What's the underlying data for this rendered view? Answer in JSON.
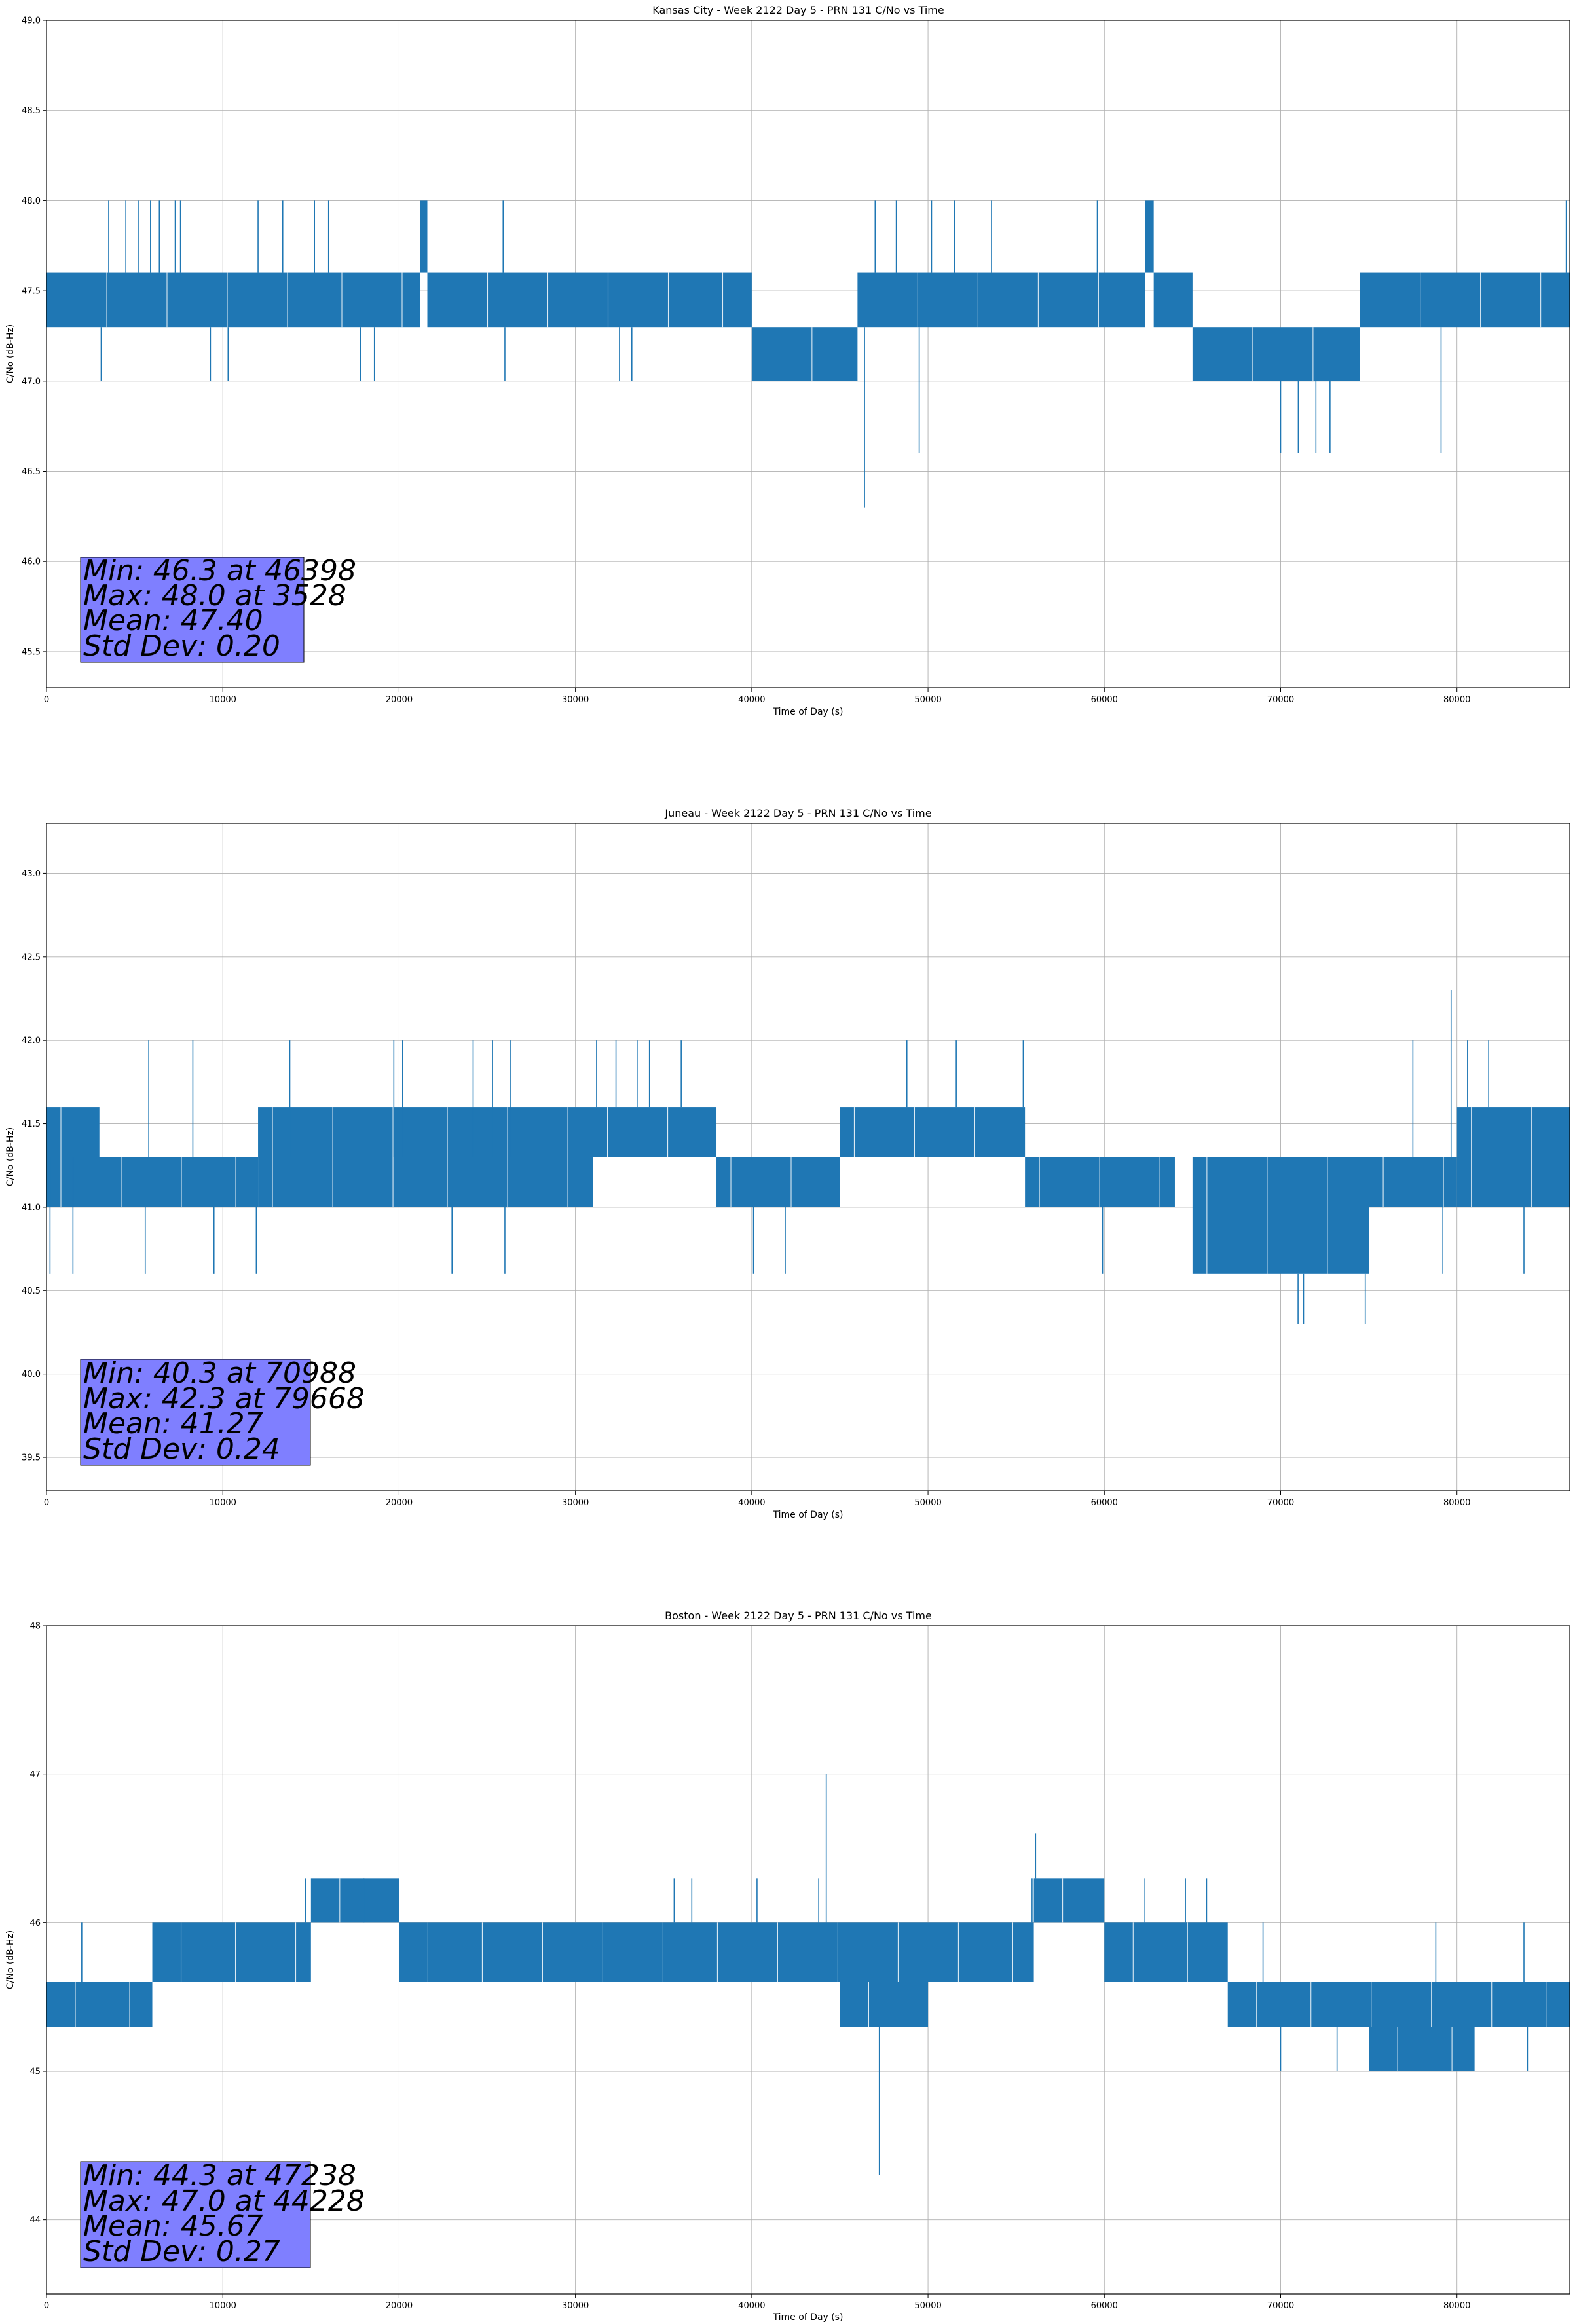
{
  "chart_data": [
    {
      "type": "line",
      "title": "Kansas City - Week 2122 Day 5 - PRN 131 C/No vs Time",
      "xlabel": "Time of Day (s)",
      "ylabel": "C/No (dB-Hz)",
      "xlim": [
        0,
        86400
      ],
      "ylim": [
        45.3,
        49.0
      ],
      "xticks": [
        0,
        10000,
        20000,
        30000,
        40000,
        50000,
        60000,
        70000,
        80000
      ],
      "yticks": [
        45.5,
        46.0,
        46.5,
        47.0,
        47.5,
        48.0,
        48.5,
        49.0
      ],
      "ytick_labels": [
        "45.5",
        "46.0",
        "46.5",
        "47.0",
        "47.5",
        "48.0",
        "48.5",
        "49.0"
      ],
      "grid": true,
      "series_color": "#1f77b4",
      "series_name": "C/No",
      "segments": [
        {
          "x0": 0,
          "x1": 21200,
          "lo": 47.3,
          "hi": 47.6
        },
        {
          "x0": 21200,
          "x1": 21600,
          "lo": 47.6,
          "hi": 48.0
        },
        {
          "x0": 21600,
          "x1": 40000,
          "lo": 47.3,
          "hi": 47.6
        },
        {
          "x0": 40000,
          "x1": 46000,
          "lo": 47.0,
          "hi": 47.3
        },
        {
          "x0": 46000,
          "x1": 62300,
          "lo": 47.3,
          "hi": 47.6
        },
        {
          "x0": 62300,
          "x1": 62800,
          "lo": 47.6,
          "hi": 48.0
        },
        {
          "x0": 62800,
          "x1": 65000,
          "lo": 47.3,
          "hi": 47.6
        },
        {
          "x0": 65000,
          "x1": 74500,
          "lo": 47.0,
          "hi": 47.3
        },
        {
          "x0": 74500,
          "x1": 86400,
          "lo": 47.3,
          "hi": 47.6
        }
      ],
      "spikes": [
        {
          "x": 3528,
          "y": 48.0
        },
        {
          "x": 4500,
          "y": 48.0
        },
        {
          "x": 5200,
          "y": 48.0
        },
        {
          "x": 5900,
          "y": 48.0
        },
        {
          "x": 6400,
          "y": 48.0
        },
        {
          "x": 7300,
          "y": 48.0
        },
        {
          "x": 7600,
          "y": 48.0
        },
        {
          "x": 12000,
          "y": 48.0
        },
        {
          "x": 13400,
          "y": 48.0
        },
        {
          "x": 15200,
          "y": 48.0
        },
        {
          "x": 16000,
          "y": 48.0
        },
        {
          "x": 25900,
          "y": 48.0
        },
        {
          "x": 47000,
          "y": 48.0
        },
        {
          "x": 48200,
          "y": 48.0
        },
        {
          "x": 50200,
          "y": 48.0
        },
        {
          "x": 51500,
          "y": 48.0
        },
        {
          "x": 53600,
          "y": 48.0
        },
        {
          "x": 59600,
          "y": 48.0
        },
        {
          "x": 86200,
          "y": 48.0
        },
        {
          "x": 3100,
          "y": 47.0
        },
        {
          "x": 9300,
          "y": 47.0
        },
        {
          "x": 10300,
          "y": 47.0
        },
        {
          "x": 17800,
          "y": 47.0
        },
        {
          "x": 18600,
          "y": 47.0
        },
        {
          "x": 26000,
          "y": 47.0
        },
        {
          "x": 32500,
          "y": 47.0
        },
        {
          "x": 33200,
          "y": 47.0
        },
        {
          "x": 46398,
          "y": 46.3
        },
        {
          "x": 49500,
          "y": 46.6
        },
        {
          "x": 70000,
          "y": 46.6
        },
        {
          "x": 71000,
          "y": 46.6
        },
        {
          "x": 72000,
          "y": 46.6
        },
        {
          "x": 72800,
          "y": 46.6
        },
        {
          "x": 79100,
          "y": 46.6
        }
      ],
      "stats": {
        "min_line": "Min: 46.3 at 46398",
        "max_line": "Max: 48.0 at 3528",
        "mean_line": "Mean: 47.40",
        "std_line": "Std Dev: 0.20"
      }
    },
    {
      "type": "line",
      "title": "Juneau - Week 2122 Day 5 - PRN 131 C/No vs Time",
      "xlabel": "Time of Day (s)",
      "ylabel": "C/No (dB-Hz)",
      "xlim": [
        0,
        86400
      ],
      "ylim": [
        39.3,
        43.3
      ],
      "xticks": [
        0,
        10000,
        20000,
        30000,
        40000,
        50000,
        60000,
        70000,
        80000
      ],
      "yticks": [
        39.5,
        40.0,
        40.5,
        41.0,
        41.5,
        42.0,
        42.5,
        43.0
      ],
      "ytick_labels": [
        "39.5",
        "40.0",
        "40.5",
        "41.0",
        "41.5",
        "42.0",
        "42.5",
        "43.0"
      ],
      "grid": true,
      "series_color": "#1f77b4",
      "series_name": "C/No",
      "segments": [
        {
          "x0": 0,
          "x1": 12000,
          "lo": 41.0,
          "hi": 41.3
        },
        {
          "x0": 0,
          "x1": 3000,
          "lo": 41.3,
          "hi": 41.6
        },
        {
          "x0": 12000,
          "x1": 31000,
          "lo": 41.3,
          "hi": 41.6
        },
        {
          "x0": 12000,
          "x1": 31000,
          "lo": 41.0,
          "hi": 41.3
        },
        {
          "x0": 31000,
          "x1": 38000,
          "lo": 41.3,
          "hi": 41.6
        },
        {
          "x0": 38000,
          "x1": 45000,
          "lo": 41.0,
          "hi": 41.3
        },
        {
          "x0": 45000,
          "x1": 55500,
          "lo": 41.3,
          "hi": 41.6
        },
        {
          "x0": 55500,
          "x1": 64000,
          "lo": 41.0,
          "hi": 41.3
        },
        {
          "x0": 65000,
          "x1": 75000,
          "lo": 40.6,
          "hi": 41.3
        },
        {
          "x0": 75000,
          "x1": 80000,
          "lo": 41.0,
          "hi": 41.3
        },
        {
          "x0": 80000,
          "x1": 86400,
          "lo": 41.0,
          "hi": 41.6
        }
      ],
      "spikes": [
        {
          "x": 5800,
          "y": 42.0
        },
        {
          "x": 8300,
          "y": 42.0
        },
        {
          "x": 13800,
          "y": 42.0
        },
        {
          "x": 19700,
          "y": 42.0
        },
        {
          "x": 20200,
          "y": 42.0
        },
        {
          "x": 24200,
          "y": 42.0
        },
        {
          "x": 25300,
          "y": 42.0
        },
        {
          "x": 26300,
          "y": 42.0
        },
        {
          "x": 31200,
          "y": 42.0
        },
        {
          "x": 32300,
          "y": 42.0
        },
        {
          "x": 33500,
          "y": 42.0
        },
        {
          "x": 34200,
          "y": 42.0
        },
        {
          "x": 36000,
          "y": 42.0
        },
        {
          "x": 48800,
          "y": 42.0
        },
        {
          "x": 51600,
          "y": 42.0
        },
        {
          "x": 55400,
          "y": 42.0
        },
        {
          "x": 77500,
          "y": 42.0
        },
        {
          "x": 79668,
          "y": 42.3
        },
        {
          "x": 80600,
          "y": 42.0
        },
        {
          "x": 81800,
          "y": 42.0
        },
        {
          "x": 200,
          "y": 40.6
        },
        {
          "x": 1500,
          "y": 40.6
        },
        {
          "x": 5600,
          "y": 40.6
        },
        {
          "x": 9500,
          "y": 40.6
        },
        {
          "x": 11900,
          "y": 40.6
        },
        {
          "x": 23000,
          "y": 40.6
        },
        {
          "x": 26000,
          "y": 40.6
        },
        {
          "x": 40100,
          "y": 40.6
        },
        {
          "x": 41900,
          "y": 40.6
        },
        {
          "x": 59900,
          "y": 40.6
        },
        {
          "x": 70988,
          "y": 40.3
        },
        {
          "x": 71300,
          "y": 40.3
        },
        {
          "x": 74800,
          "y": 40.3
        },
        {
          "x": 79200,
          "y": 40.6
        },
        {
          "x": 83800,
          "y": 40.6
        }
      ],
      "stats": {
        "min_line": "Min: 40.3 at 70988",
        "max_line": "Max: 42.3 at 79668",
        "mean_line": "Mean: 41.27",
        "std_line": "Std Dev: 0.24"
      }
    },
    {
      "type": "line",
      "title": "Boston - Week 2122 Day 5 - PRN 131 C/No vs Time",
      "xlabel": "Time of Day (s)",
      "ylabel": "C/No (dB-Hz)",
      "xlim": [
        0,
        86400
      ],
      "ylim": [
        43.5,
        48.0
      ],
      "xticks": [
        0,
        10000,
        20000,
        30000,
        40000,
        50000,
        60000,
        70000,
        80000
      ],
      "yticks": [
        44,
        45,
        46,
        47,
        48
      ],
      "ytick_labels": [
        "44",
        "45",
        "46",
        "47",
        "48"
      ],
      "grid": true,
      "series_color": "#1f77b4",
      "series_name": "C/No",
      "segments": [
        {
          "x0": 0,
          "x1": 6000,
          "lo": 45.3,
          "hi": 45.6
        },
        {
          "x0": 6000,
          "x1": 15000,
          "lo": 45.6,
          "hi": 46.0
        },
        {
          "x0": 15000,
          "x1": 20000,
          "lo": 46.0,
          "hi": 46.3
        },
        {
          "x0": 20000,
          "x1": 56000,
          "lo": 45.6,
          "hi": 46.0
        },
        {
          "x0": 45000,
          "x1": 50000,
          "lo": 45.3,
          "hi": 45.6
        },
        {
          "x0": 56000,
          "x1": 60000,
          "lo": 46.0,
          "hi": 46.3
        },
        {
          "x0": 60000,
          "x1": 67000,
          "lo": 45.6,
          "hi": 46.0
        },
        {
          "x0": 67000,
          "x1": 86400,
          "lo": 45.3,
          "hi": 45.6
        },
        {
          "x0": 75000,
          "x1": 81000,
          "lo": 45.0,
          "hi": 45.3
        }
      ],
      "spikes": [
        {
          "x": 44228,
          "y": 47.0
        },
        {
          "x": 47238,
          "y": 44.3
        },
        {
          "x": 56100,
          "y": 46.6
        },
        {
          "x": 2000,
          "y": 46.0
        },
        {
          "x": 14700,
          "y": 46.3
        },
        {
          "x": 18000,
          "y": 46.3
        },
        {
          "x": 35600,
          "y": 46.3
        },
        {
          "x": 36600,
          "y": 46.3
        },
        {
          "x": 40300,
          "y": 46.3
        },
        {
          "x": 43800,
          "y": 46.3
        },
        {
          "x": 55900,
          "y": 46.3
        },
        {
          "x": 62300,
          "y": 46.3
        },
        {
          "x": 64600,
          "y": 46.3
        },
        {
          "x": 65800,
          "y": 46.3
        },
        {
          "x": 69000,
          "y": 46.0
        },
        {
          "x": 78800,
          "y": 46.0
        },
        {
          "x": 83800,
          "y": 46.0
        },
        {
          "x": 70000,
          "y": 45.0
        },
        {
          "x": 73200,
          "y": 45.0
        },
        {
          "x": 84000,
          "y": 45.0
        }
      ],
      "stats": {
        "min_line": "Min: 44.3 at 47238",
        "max_line": "Max: 47.0 at 44228",
        "mean_line": "Mean: 45.67",
        "std_line": "Std Dev: 0.27"
      }
    }
  ]
}
